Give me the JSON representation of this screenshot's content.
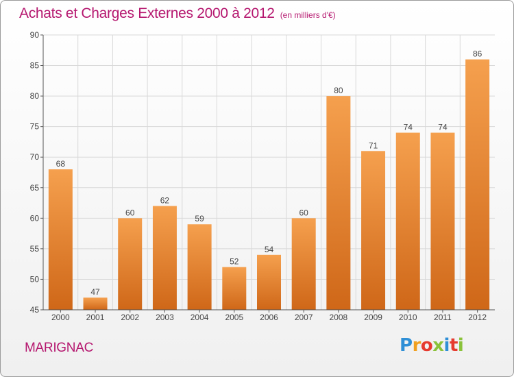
{
  "chart_data": {
    "type": "bar",
    "title": "Achats et Charges Externes 2000 à 2012",
    "subtitle": "(en milliers d'€)",
    "categories": [
      "2000",
      "2001",
      "2002",
      "2003",
      "2004",
      "2005",
      "2006",
      "2007",
      "2008",
      "2009",
      "2010",
      "2011",
      "2012"
    ],
    "values": [
      68,
      47,
      60,
      62,
      59,
      52,
      54,
      60,
      80,
      71,
      74,
      74,
      86
    ],
    "ylim": [
      45,
      90
    ],
    "yticks": [
      45,
      50,
      55,
      60,
      65,
      70,
      75,
      80,
      85,
      90
    ],
    "xlabel": "",
    "ylabel": "",
    "grid": true,
    "bar_color_top": "#f5a04e",
    "bar_color_bottom": "#cf6718"
  },
  "footer": {
    "commune": "MARIGNAC",
    "logo_letters": [
      {
        "ch": "P",
        "color": "#2f8fd6"
      },
      {
        "ch": "r",
        "color": "#f0a020"
      },
      {
        "ch": "o",
        "color": "#e63a2e"
      },
      {
        "ch": "x",
        "color": "#8ac23a"
      },
      {
        "ch": "i",
        "color": "#2f8fd6"
      },
      {
        "ch": "t",
        "color": "#e63a2e"
      },
      {
        "ch": "i",
        "color": "#8ac23a"
      }
    ]
  },
  "colors": {
    "title": "#b5176f",
    "axis": "#555555",
    "grid": "#d8d8d8"
  }
}
